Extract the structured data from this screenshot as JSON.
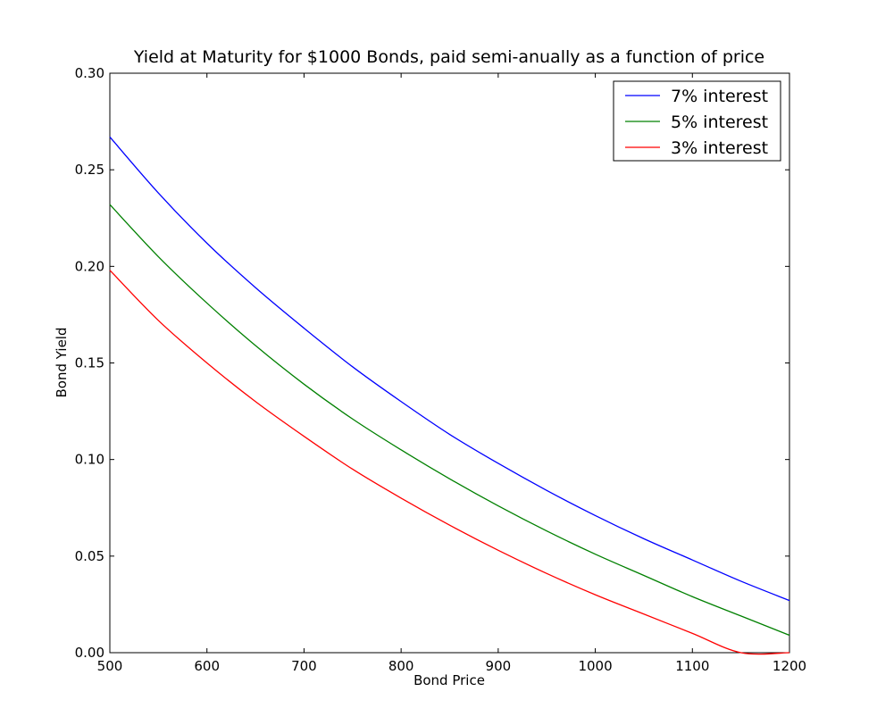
{
  "chart_data": {
    "type": "line",
    "title": "Yield at Maturity for $1000 Bonds, paid semi-anually as a function of price",
    "xlabel": "Bond Price",
    "ylabel": "Bond Yield",
    "xlim": [
      500,
      1200
    ],
    "ylim": [
      0.0,
      0.3
    ],
    "xticks": [
      500,
      600,
      700,
      800,
      900,
      1000,
      1100,
      1200
    ],
    "xtick_labels": [
      "500",
      "600",
      "700",
      "800",
      "900",
      "1000",
      "1100",
      "1200"
    ],
    "yticks": [
      0.0,
      0.05,
      0.1,
      0.15,
      0.2,
      0.25,
      0.3
    ],
    "ytick_labels": [
      "0.00",
      "0.05",
      "0.10",
      "0.15",
      "0.20",
      "0.25",
      "0.30"
    ],
    "grid": false,
    "legend_position": "top-right",
    "x": [
      500,
      550,
      600,
      650,
      700,
      750,
      800,
      850,
      900,
      950,
      1000,
      1050,
      1100,
      1150,
      1200
    ],
    "series": [
      {
        "name": "7% interest",
        "color": "#0000ff",
        "values": [
          0.267,
          0.238,
          0.212,
          0.189,
          0.168,
          0.148,
          0.13,
          0.113,
          0.098,
          0.084,
          0.071,
          0.059,
          0.048,
          0.037,
          0.027
        ]
      },
      {
        "name": "5% interest",
        "color": "#008000",
        "values": [
          0.232,
          0.205,
          0.181,
          0.159,
          0.139,
          0.121,
          0.105,
          0.09,
          0.076,
          0.063,
          0.051,
          0.04,
          0.029,
          0.019,
          0.009
        ]
      },
      {
        "name": "3% interest",
        "color": "#ff0000",
        "values": [
          0.198,
          0.172,
          0.15,
          0.13,
          0.112,
          0.095,
          0.08,
          0.066,
          0.053,
          0.041,
          0.03,
          0.02,
          0.01,
          0.0,
          0.0
        ]
      }
    ]
  }
}
